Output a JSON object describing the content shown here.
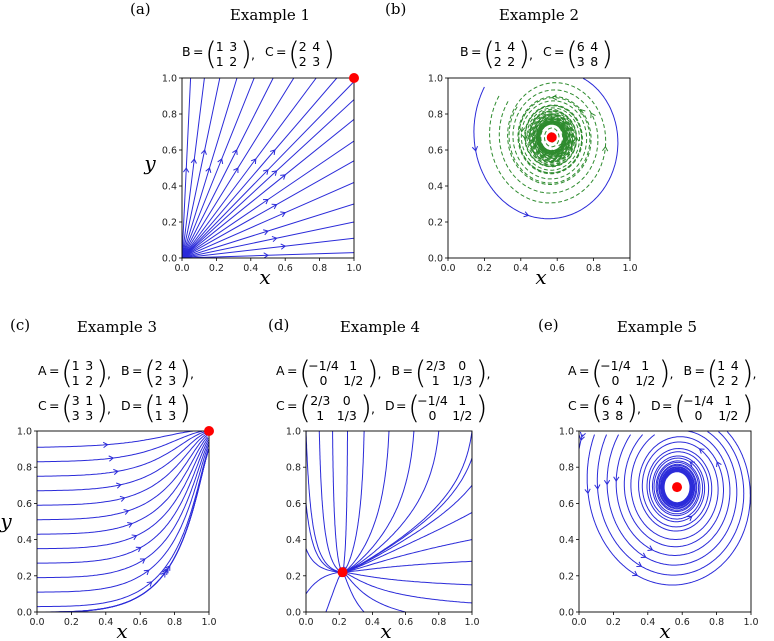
{
  "panels": [
    {
      "id": "a",
      "label": "(a)",
      "title": "Example 1",
      "eq_lines": [
        [
          {
            "name": "B",
            "m": [
              [
                "1",
                "3"
              ],
              [
                "1",
                "2"
              ]
            ]
          },
          {
            "name": "C",
            "m": [
              [
                "2",
                "4"
              ],
              [
                "2",
                "3"
              ]
            ]
          }
        ]
      ],
      "xlabel": "x",
      "ylabel": "y",
      "xticks": [
        "0.0",
        "0.2",
        "0.4",
        "0.6",
        "0.8",
        "1.0"
      ],
      "yticks": [
        "0.0",
        "0.2",
        "0.4",
        "0.6",
        "0.8",
        "1.0"
      ],
      "equilibrium": {
        "x": 1.0,
        "y": 1.0,
        "color": "#ff0000"
      },
      "flow": "radial-from-origin"
    },
    {
      "id": "b",
      "label": "(b)",
      "title": "Example 2",
      "eq_lines": [
        [
          {
            "name": "B",
            "m": [
              [
                "1",
                "4"
              ],
              [
                "2",
                "2"
              ]
            ]
          },
          {
            "name": "C",
            "m": [
              [
                "6",
                "4"
              ],
              [
                "3",
                "8"
              ]
            ]
          }
        ]
      ],
      "xlabel": "x",
      "ylabel": "",
      "xticks": [
        "0.0",
        "0.2",
        "0.4",
        "0.6",
        "0.8",
        "1.0"
      ],
      "yticks": [
        "0.0",
        "0.2",
        "0.4",
        "0.6",
        "0.8",
        "1.0"
      ],
      "equilibrium": {
        "x": 0.57,
        "y": 0.67,
        "color": "#ff0000"
      },
      "flow": "spiral-in",
      "inner_color": "#2e8b2e",
      "outer_color": "#2b2bd9"
    },
    {
      "id": "c",
      "label": "(c)",
      "title": "Example 3",
      "eq_lines": [
        [
          {
            "name": "A",
            "m": [
              [
                "1",
                "3"
              ],
              [
                "1",
                "2"
              ]
            ]
          },
          {
            "name": "B",
            "m": [
              [
                "2",
                "4"
              ],
              [
                "2",
                "3"
              ]
            ]
          }
        ],
        [
          {
            "name": "C",
            "m": [
              [
                "3",
                "1"
              ],
              [
                "3",
                "3"
              ]
            ]
          },
          {
            "name": "D",
            "m": [
              [
                "1",
                "4"
              ],
              [
                "1",
                "3"
              ]
            ]
          }
        ]
      ],
      "xlabel": "x",
      "ylabel": "y",
      "xticks": [
        "0.0",
        "0.2",
        "0.4",
        "0.6",
        "0.8",
        "1.0"
      ],
      "yticks": [
        "0.0",
        "0.2",
        "0.4",
        "0.6",
        "0.8",
        "1.0"
      ],
      "equilibrium": {
        "x": 1.0,
        "y": 1.0,
        "color": "#ff0000"
      },
      "flow": "corner-attractor"
    },
    {
      "id": "d",
      "label": "(d)",
      "title": "Example 4",
      "eq_lines": [
        [
          {
            "name": "A",
            "m": [
              [
                "−1/4",
                "1"
              ],
              [
                "0",
                "1/2"
              ]
            ]
          },
          {
            "name": "B",
            "m": [
              [
                "2/3",
                "0"
              ],
              [
                "1",
                "1/3"
              ]
            ]
          }
        ],
        [
          {
            "name": "C",
            "m": [
              [
                "2/3",
                "0"
              ],
              [
                "1",
                "1/3"
              ]
            ]
          },
          {
            "name": "D",
            "m": [
              [
                "−1/4",
                "1"
              ],
              [
                "0",
                "1/2"
              ]
            ]
          }
        ]
      ],
      "xlabel": "x",
      "ylabel": "",
      "xticks": [
        "0.0",
        "0.2",
        "0.4",
        "0.6",
        "0.8",
        "1.0"
      ],
      "yticks": [
        "0.0",
        "0.2",
        "0.4",
        "0.6",
        "0.8",
        "1.0"
      ],
      "equilibrium": {
        "x": 0.22,
        "y": 0.22,
        "color": "#ff0000"
      },
      "flow": "node-attractor"
    },
    {
      "id": "e",
      "label": "(e)",
      "title": "Example 5",
      "eq_lines": [
        [
          {
            "name": "A",
            "m": [
              [
                "−1/4",
                "1"
              ],
              [
                "0",
                "1/2"
              ]
            ]
          },
          {
            "name": "B",
            "m": [
              [
                "1",
                "4"
              ],
              [
                "2",
                "2"
              ]
            ]
          }
        ],
        [
          {
            "name": "C",
            "m": [
              [
                "6",
                "4"
              ],
              [
                "3",
                "8"
              ]
            ]
          },
          {
            "name": "D",
            "m": [
              [
                "−1/4",
                "1"
              ],
              [
                "0",
                "1/2"
              ]
            ]
          }
        ]
      ],
      "xlabel": "x",
      "ylabel": "",
      "xticks": [
        "0.0",
        "0.2",
        "0.4",
        "0.6",
        "0.8",
        "1.0"
      ],
      "yticks": [
        "0.0",
        "0.2",
        "0.4",
        "0.6",
        "0.8",
        "1.0"
      ],
      "equilibrium": {
        "x": 0.57,
        "y": 0.69,
        "color": "#ff0000"
      },
      "flow": "spiral-in"
    }
  ]
}
